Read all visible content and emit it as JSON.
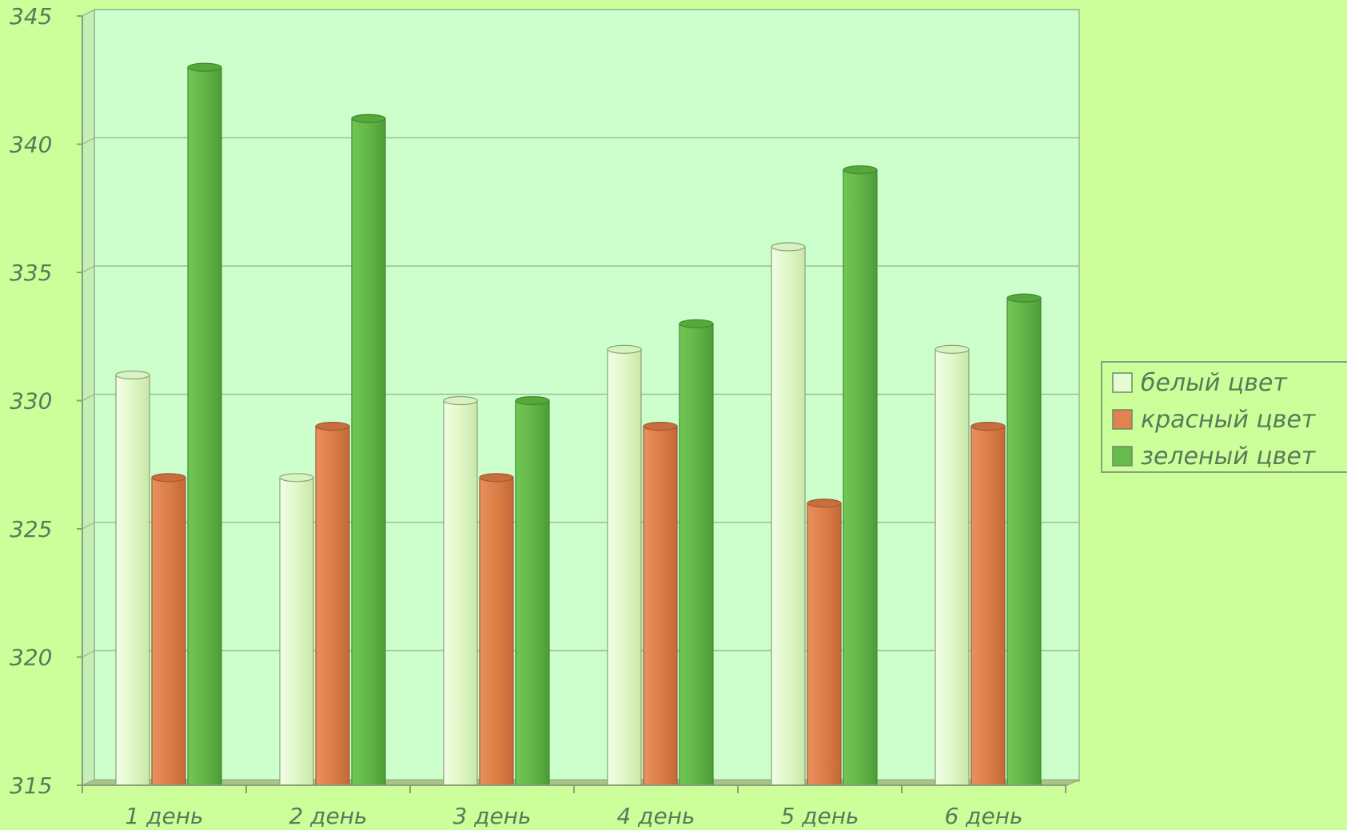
{
  "chart_data": {
    "type": "bar",
    "title": "",
    "xlabel": "",
    "ylabel": "",
    "categories": [
      "1 день",
      "2 день",
      "3 день",
      "4 день",
      "5 день",
      "6 день"
    ],
    "series": [
      {
        "name": "белый цвет",
        "values": [
          331,
          327,
          330,
          332,
          336,
          332
        ]
      },
      {
        "name": "красный цвет",
        "values": [
          327,
          329,
          327,
          329,
          326,
          329
        ]
      },
      {
        "name": "зеленый цвет",
        "values": [
          343,
          341,
          330,
          333,
          339,
          334
        ]
      }
    ],
    "ylim": [
      315,
      345
    ],
    "yticks": [
      315,
      320,
      325,
      330,
      335,
      340,
      345
    ],
    "grid": true,
    "legend_position": "right",
    "colors": {
      "page_background": "#ccff99",
      "plot_background": "#ccffcc",
      "series": [
        "#e6fcd0",
        "#e0834e",
        "#66bb4c"
      ]
    }
  }
}
